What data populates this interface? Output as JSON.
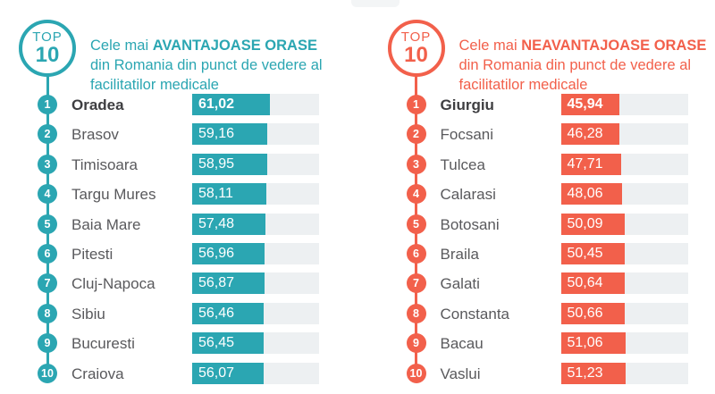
{
  "panels": [
    {
      "id": "advantageous",
      "accent": "#2BA6B2",
      "badge_word": "TOP",
      "badge_number": "10",
      "title_prefix": "Cele mai",
      "title_highlight": "AVANTAJOASE ORASE",
      "title_rest": "din Romania din punct de vedere al facilitatilor medicale"
    },
    {
      "id": "disadvantageous",
      "accent": "#F2604B",
      "badge_word": "TOP",
      "badge_number": "10",
      "title_prefix": "Cele mai",
      "title_highlight": "NEAVANTAJOASE ORASE",
      "title_rest": "din Romania din punct de vedere al facilitatilor medicale"
    }
  ],
  "chart_data": [
    {
      "type": "bar",
      "orientation": "horizontal",
      "title": "Cele mai AVANTAJOASE ORASE din Romania din punct de vedere al facilitatilor medicale",
      "categories": [
        "Oradea",
        "Brasov",
        "Timisoara",
        "Targu Mures",
        "Baia Mare",
        "Pitesti",
        "Cluj-Napoca",
        "Sibiu",
        "Bucuresti",
        "Craiova"
      ],
      "values": [
        61.02,
        59.16,
        58.95,
        58.11,
        57.48,
        56.96,
        56.87,
        56.46,
        56.45,
        56.07
      ],
      "value_labels": [
        "61,02",
        "59,16",
        "58,95",
        "58,11",
        "57,48",
        "56,96",
        "56,87",
        "56,46",
        "56,45",
        "56,07"
      ],
      "ranks": [
        "1",
        "2",
        "3",
        "4",
        "5",
        "6",
        "7",
        "8",
        "9",
        "10"
      ],
      "xlim": [
        0,
        100
      ],
      "bar_color": "#2BA6B2",
      "track_color": "#EDF0F2",
      "grid": false,
      "legend": false,
      "emphasized_category": "Oradea"
    },
    {
      "type": "bar",
      "orientation": "horizontal",
      "title": "Cele mai NEAVANTAJOASE ORASE din Romania din punct de vedere al facilitatilor medicale",
      "categories": [
        "Giurgiu",
        "Focsani",
        "Tulcea",
        "Calarasi",
        "Botosani",
        "Braila",
        "Galati",
        "Constanta",
        "Bacau",
        "Vaslui"
      ],
      "values": [
        45.94,
        46.28,
        47.71,
        48.06,
        50.09,
        50.45,
        50.64,
        50.66,
        51.06,
        51.23
      ],
      "value_labels": [
        "45,94",
        "46,28",
        "47,71",
        "48,06",
        "50,09",
        "50,45",
        "50,64",
        "50,66",
        "51,06",
        "51,23"
      ],
      "ranks": [
        "1",
        "2",
        "3",
        "4",
        "5",
        "6",
        "7",
        "8",
        "9",
        "10"
      ],
      "xlim": [
        0,
        100
      ],
      "bar_color": "#F2604B",
      "track_color": "#EDF0F2",
      "grid": false,
      "legend": false,
      "emphasized_category": "Giurgiu"
    }
  ]
}
